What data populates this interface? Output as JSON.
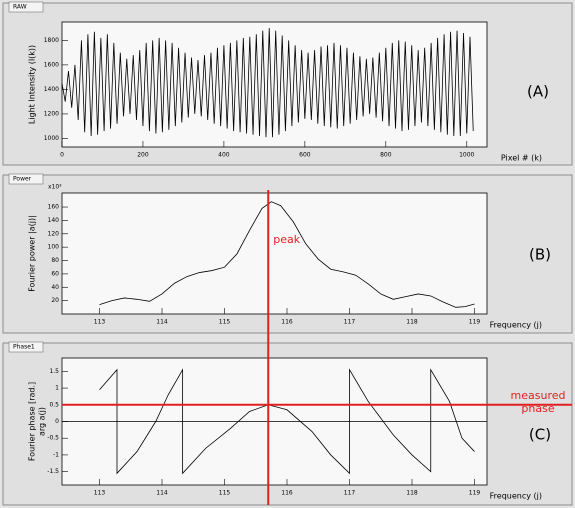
{
  "chart_data": [
    {
      "type": "line",
      "title": "RAW",
      "panel_label": "(A)",
      "ylabel": [
        "Light Intensity (I(k))"
      ],
      "xlabel": "Pixel # (k)",
      "xlim": [
        0,
        1050
      ],
      "xticks": [
        0,
        200,
        400,
        600,
        800,
        1000
      ],
      "ylim": [
        930,
        1950
      ],
      "yticks": [
        1000,
        1200,
        1400,
        1600,
        1800
      ],
      "x": [
        0,
        8,
        16,
        24,
        32,
        40,
        48,
        56,
        64,
        72,
        80,
        88,
        96,
        104,
        112,
        120,
        128,
        136,
        144,
        152,
        160,
        168,
        176,
        184,
        192,
        200,
        208,
        216,
        224,
        232,
        240,
        248,
        256,
        264,
        272,
        280,
        288,
        296,
        304,
        312,
        320,
        328,
        336,
        344,
        352,
        360,
        368,
        376,
        384,
        392,
        400,
        408,
        416,
        424,
        432,
        440,
        448,
        456,
        464,
        472,
        480,
        488,
        496,
        504,
        512,
        520,
        528,
        536,
        544,
        552,
        560,
        568,
        576,
        584,
        592,
        600,
        608,
        616,
        624,
        632,
        640,
        648,
        656,
        664,
        672,
        680,
        688,
        696,
        704,
        712,
        720,
        728,
        736,
        744,
        752,
        760,
        768,
        776,
        784,
        792,
        800,
        808,
        816,
        824,
        832,
        840,
        848,
        856,
        864,
        872,
        880,
        888,
        896,
        904,
        912,
        920,
        928,
        936,
        944,
        952,
        960,
        968,
        976,
        984,
        992,
        1000,
        1008,
        1016
      ],
      "series": [
        {
          "name": "RAW",
          "color": "#000000",
          "values": [
            1450,
            1300,
            1550,
            1250,
            1600,
            1150,
            1800,
            1050,
            1850,
            1020,
            1870,
            1030,
            1820,
            1060,
            1850,
            1080,
            1780,
            1120,
            1700,
            1180,
            1650,
            1200,
            1680,
            1150,
            1720,
            1100,
            1780,
            1060,
            1800,
            1040,
            1820,
            1050,
            1800,
            1070,
            1780,
            1100,
            1740,
            1130,
            1700,
            1170,
            1660,
            1200,
            1640,
            1180,
            1680,
            1150,
            1700,
            1120,
            1740,
            1100,
            1760,
            1080,
            1780,
            1060,
            1800,
            1050,
            1820,
            1040,
            1830,
            1030,
            1850,
            1020,
            1880,
            1010,
            1900,
            1010,
            1880,
            1030,
            1840,
            1060,
            1800,
            1100,
            1760,
            1130,
            1720,
            1160,
            1700,
            1150,
            1720,
            1120,
            1750,
            1100,
            1760,
            1090,
            1780,
            1080,
            1760,
            1100,
            1740,
            1120,
            1700,
            1150,
            1670,
            1180,
            1650,
            1200,
            1660,
            1170,
            1700,
            1140,
            1740,
            1100,
            1780,
            1080,
            1800,
            1060,
            1790,
            1070,
            1760,
            1100,
            1720,
            1130,
            1740,
            1100,
            1780,
            1070,
            1820,
            1050,
            1850,
            1030,
            1870,
            1020,
            1880,
            1020,
            1860,
            1040,
            1830,
            1060
          ]
        }
      ]
    },
    {
      "type": "line",
      "title": "Power",
      "panel_label": "(B)",
      "ylabel": [
        "Fourier power |a(j)|"
      ],
      "xlabel": "Frequency (j)",
      "y_multiplier": "x10³",
      "xlim": [
        112.4,
        119.2
      ],
      "xticks": [
        113,
        114,
        115,
        116,
        117,
        118,
        119
      ],
      "ylim": [
        0,
        181
      ],
      "yticks": [
        20,
        40,
        60,
        80,
        100,
        120,
        140,
        160
      ],
      "x": [
        113,
        113.2,
        113.4,
        113.6,
        113.8,
        114.0,
        114.2,
        114.4,
        114.6,
        114.8,
        115.0,
        115.2,
        115.4,
        115.6,
        115.75,
        115.9,
        116.1,
        116.3,
        116.5,
        116.7,
        116.9,
        117.1,
        117.3,
        117.5,
        117.7,
        117.9,
        118.1,
        118.3,
        118.5,
        118.7,
        118.85,
        119
      ],
      "series": [
        {
          "name": "Power",
          "color": "#000000",
          "values": [
            14,
            20,
            24,
            22,
            19,
            30,
            46,
            56,
            62,
            65,
            70,
            90,
            125,
            158,
            168,
            162,
            138,
            105,
            82,
            67,
            63,
            58,
            45,
            30,
            22,
            26,
            30,
            27,
            18,
            10,
            11,
            15
          ]
        }
      ],
      "marker_x": 115.7,
      "annotation": "peak"
    },
    {
      "type": "line",
      "title": "Phase1",
      "panel_label": "(C)",
      "ylabel": [
        "Fourier phase [rad.]",
        "arg a(j)"
      ],
      "xlabel": "Frequency (j)",
      "xlim": [
        112.4,
        119.2
      ],
      "xticks": [
        113,
        114,
        115,
        116,
        117,
        118,
        119
      ],
      "ylim": [
        -1.9,
        1.9
      ],
      "yticks": [
        -1.5,
        -1,
        -0.5,
        0,
        0.5,
        1,
        1.5
      ],
      "x": [
        113,
        113.28,
        113.28,
        113.6,
        113.9,
        114.1,
        114.33,
        114.33,
        114.7,
        115.1,
        115.4,
        115.7,
        116.0,
        116.4,
        116.7,
        117.0,
        117.0,
        117.3,
        117.7,
        118.0,
        118.3,
        118.3,
        118.6,
        118.8,
        119.0
      ],
      "series": [
        {
          "name": "Phase1",
          "color": "#000000",
          "values": [
            0.95,
            1.55,
            -1.55,
            -0.9,
            0,
            0.8,
            1.55,
            -1.55,
            -0.8,
            -0.2,
            0.3,
            0.5,
            0.35,
            -0.3,
            -1.0,
            -1.55,
            1.55,
            0.6,
            -0.4,
            -1.0,
            -1.5,
            1.55,
            0.6,
            -0.5,
            -0.9
          ]
        }
      ],
      "marker_y": 0.5,
      "annotation": [
        "measured",
        "phase"
      ]
    }
  ]
}
